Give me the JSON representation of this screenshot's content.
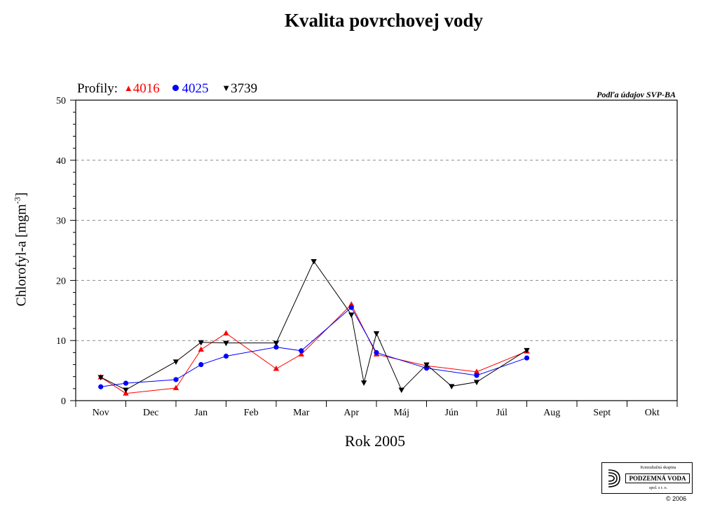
{
  "chart_data": {
    "type": "line",
    "title": "Kvalita povrchovej vody",
    "source_note": "Podľa údajov SVP-BA",
    "legend_title": "Profily:",
    "xlabel": "Rok 2005",
    "ylabel_main": "Chlorofyl-a [mgm",
    "ylabel_sup": "-3",
    "ylabel_end": "]",
    "categories": [
      "Nov",
      "Dec",
      "Jan",
      "Feb",
      "Mar",
      "Apr",
      "Máj",
      "Jún",
      "Júl",
      "Aug",
      "Sept",
      "Okt"
    ],
    "ylim": [
      0,
      50
    ],
    "yticks": [
      0,
      10,
      20,
      30,
      40,
      50
    ],
    "grid": "dashed horizontal",
    "legend_position": "top-left",
    "series": [
      {
        "name": "4016",
        "color": "#ff0000",
        "marker": "triangle-up",
        "points": [
          [
            0.0,
            3.9
          ],
          [
            0.5,
            1.2
          ],
          [
            1.5,
            2.1
          ],
          [
            2.0,
            8.5
          ],
          [
            2.5,
            11.2
          ],
          [
            3.5,
            5.3
          ],
          [
            4.0,
            7.7
          ],
          [
            5.0,
            16.0
          ],
          [
            5.5,
            7.7
          ],
          [
            6.5,
            5.8
          ],
          [
            7.5,
            4.8
          ],
          [
            8.5,
            8.2
          ]
        ]
      },
      {
        "name": "4025",
        "color": "#0000ff",
        "marker": "circle",
        "points": [
          [
            0.0,
            2.3
          ],
          [
            0.5,
            2.9
          ],
          [
            1.5,
            3.5
          ],
          [
            2.0,
            6.0
          ],
          [
            2.5,
            7.4
          ],
          [
            3.5,
            8.9
          ],
          [
            4.0,
            8.3
          ],
          [
            5.0,
            15.5
          ],
          [
            5.5,
            8.0
          ],
          [
            6.5,
            5.4
          ],
          [
            7.5,
            4.2
          ],
          [
            8.5,
            7.1
          ]
        ]
      },
      {
        "name": "3739",
        "color": "#000000",
        "marker": "triangle-down",
        "points": [
          [
            0.0,
            3.9
          ],
          [
            0.5,
            1.8
          ],
          [
            1.5,
            6.5
          ],
          [
            2.0,
            9.7
          ],
          [
            2.5,
            9.6
          ],
          [
            3.5,
            9.6
          ],
          [
            4.25,
            23.2
          ],
          [
            5.0,
            14.3
          ],
          [
            5.25,
            3.0
          ],
          [
            5.5,
            11.2
          ],
          [
            6.0,
            1.8
          ],
          [
            6.5,
            6.0
          ],
          [
            7.0,
            2.4
          ],
          [
            7.5,
            3.1
          ],
          [
            8.5,
            8.4
          ]
        ]
      }
    ]
  },
  "logo": {
    "top_text": "Konzultačná skupina",
    "name": "PODZEMNÁ VODA",
    "sub_text": "spol. s r. o."
  },
  "copyright": "© 2006"
}
